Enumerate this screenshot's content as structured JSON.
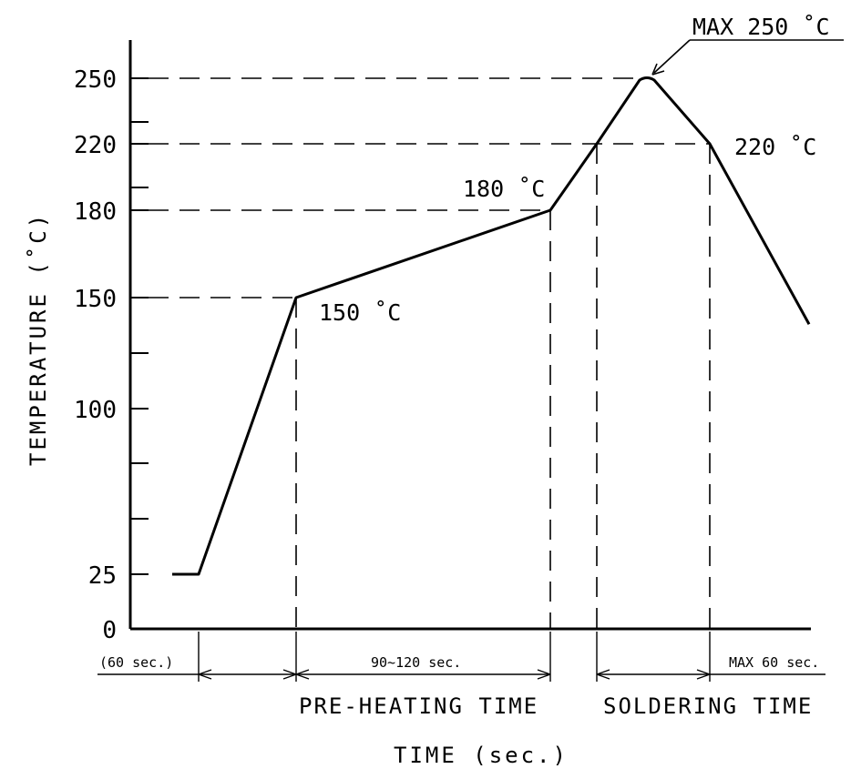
{
  "chart_data": {
    "type": "line",
    "xlabel": "TIME (sec.)",
    "ylabel": "TEMPERATURE (˚C)",
    "y_ticks": [
      0,
      25,
      100,
      150,
      180,
      220,
      250
    ],
    "y_ticks_unlabeled": [
      50,
      75,
      125,
      200,
      240
    ],
    "profile": [
      {
        "point": "start",
        "temp": 25
      },
      {
        "point": "ramp start",
        "temp": 25
      },
      {
        "point": "pre-heating start",
        "temp": 150
      },
      {
        "point": "pre-heating end",
        "temp": 180
      },
      {
        "point": "soldering start",
        "temp": 220
      },
      {
        "point": "peak",
        "temp": 250
      },
      {
        "point": "soldering end",
        "temp": 220
      },
      {
        "point": "end",
        "temp": 138
      }
    ],
    "annotations": {
      "max": "MAX 250 ˚C",
      "t220": "220 ˚C",
      "t180": "180 ˚C",
      "t150": "150 ˚C"
    },
    "intervals": {
      "ramp": "(60 sec.)",
      "preheat": "90~120 sec.",
      "soldering": "MAX 60 sec."
    },
    "phases": {
      "preheat": "PRE-HEATING TIME",
      "soldering": "SOLDERING TIME"
    }
  }
}
